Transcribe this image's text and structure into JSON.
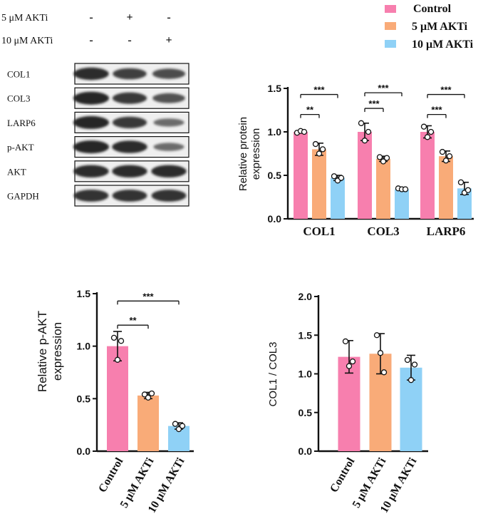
{
  "colors": {
    "control": "#f77fae",
    "ak5": "#f9ab78",
    "ak10": "#8fd1f6",
    "blot_band": "#1c1c1c",
    "blot_bg": "#efefef"
  },
  "legend": {
    "items": [
      {
        "label": "Control",
        "color": "#f77fae"
      },
      {
        "label": "5 μM AKTi",
        "color": "#f9ab78"
      },
      {
        "label": "10 μM AKTi",
        "color": "#8fd1f6"
      }
    ]
  },
  "blot": {
    "treatments": [
      {
        "label": "5 μM AKTi",
        "marks": [
          "-",
          "+",
          "-"
        ]
      },
      {
        "label": "10 μM AKTi",
        "marks": [
          "-",
          "-",
          "+"
        ]
      }
    ],
    "rows": [
      {
        "label": "COL1",
        "intensity": [
          0.95,
          0.8,
          0.7
        ]
      },
      {
        "label": "COL3",
        "intensity": [
          1.0,
          0.85,
          0.65
        ]
      },
      {
        "label": "LARP6",
        "intensity": [
          1.0,
          0.85,
          0.45
        ]
      },
      {
        "label": "p-AKT",
        "intensity": [
          1.0,
          0.95,
          0.45
        ]
      },
      {
        "label": "AKT",
        "intensity": [
          0.95,
          0.95,
          0.95
        ]
      },
      {
        "label": "GAPDH",
        "intensity": [
          0.9,
          0.9,
          0.9
        ]
      }
    ]
  },
  "chart_data": [
    {
      "type": "bar",
      "id": "protein",
      "ylabel": "Relative protein expression",
      "ylim": [
        0,
        1.5
      ],
      "yticks": [
        "0.0",
        "0.5",
        "1.0",
        "1.5"
      ],
      "categories": [
        "COL1",
        "COL3",
        "LARP6"
      ],
      "series": [
        {
          "name": "Control",
          "values": [
            1.0,
            1.0,
            1.0
          ],
          "errors": [
            0.01,
            0.1,
            0.07
          ],
          "points": [
            [
              0.99,
              1.01,
              1.0
            ],
            [
              1.1,
              0.9,
              1.0
            ],
            [
              1.06,
              0.94,
              1.0
            ]
          ]
        },
        {
          "name": "5 μM AKTi",
          "values": [
            0.8,
            0.69,
            0.72
          ],
          "errors": [
            0.07,
            0.03,
            0.06
          ],
          "points": [
            [
              0.86,
              0.75,
              0.8
            ],
            [
              0.71,
              0.66,
              0.7
            ],
            [
              0.77,
              0.67,
              0.72
            ]
          ]
        },
        {
          "name": "10 μM AKTi",
          "values": [
            0.47,
            0.34,
            0.35
          ],
          "errors": [
            0.03,
            0.01,
            0.07
          ],
          "points": [
            [
              0.49,
              0.44,
              0.47
            ],
            [
              0.35,
              0.34,
              0.34
            ],
            [
              0.42,
              0.3,
              0.33
            ]
          ]
        }
      ],
      "significance": [
        {
          "group": 0,
          "from": 0,
          "to": 1,
          "label": "**",
          "y": 1.2
        },
        {
          "group": 0,
          "from": 0,
          "to": 2,
          "label": "***",
          "y": 1.43
        },
        {
          "group": 1,
          "from": 0,
          "to": 1,
          "label": "***",
          "y": 1.27
        },
        {
          "group": 1,
          "from": 0,
          "to": 2,
          "label": "***",
          "y": 1.45
        },
        {
          "group": 2,
          "from": 0,
          "to": 1,
          "label": "***",
          "y": 1.2
        },
        {
          "group": 2,
          "from": 0,
          "to": 2,
          "label": "***",
          "y": 1.43
        }
      ]
    },
    {
      "type": "bar",
      "id": "pakt",
      "ylabel": "Relative p-AKT expression",
      "ylim": [
        0,
        1.5
      ],
      "yticks": [
        "0.0",
        "0.5",
        "1.0",
        "1.5"
      ],
      "categories": [
        "Control",
        "5 μM AKTi",
        "10 μM AKTi"
      ],
      "values": [
        1.0,
        0.53,
        0.24
      ],
      "errors": [
        0.14,
        0.03,
        0.03
      ],
      "points": [
        [
          1.08,
          0.87,
          1.05
        ],
        [
          0.54,
          0.51,
          0.55
        ],
        [
          0.26,
          0.21,
          0.24
        ]
      ],
      "significance": [
        {
          "from": 0,
          "to": 1,
          "label": "**",
          "y": 1.2
        },
        {
          "from": 0,
          "to": 2,
          "label": "***",
          "y": 1.43
        }
      ]
    },
    {
      "type": "bar",
      "id": "ratio",
      "ylabel": "COL1 / COL3",
      "ylim": [
        0,
        2.0
      ],
      "yticks": [
        "0.0",
        "0.5",
        "1.0",
        "1.5",
        "2.0"
      ],
      "categories": [
        "Control",
        "5 μM AKTi",
        "10 μM AKTi"
      ],
      "values": [
        1.22,
        1.26,
        1.08
      ],
      "errors": [
        0.21,
        0.26,
        0.16
      ],
      "points": [
        [
          1.42,
          1.1,
          1.16
        ],
        [
          1.5,
          1.27,
          1.02
        ],
        [
          1.18,
          0.92,
          1.12
        ]
      ]
    }
  ]
}
